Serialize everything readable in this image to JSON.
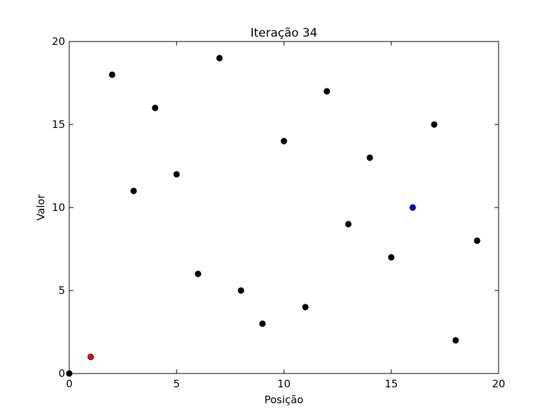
{
  "chart_data": {
    "type": "scatter",
    "title": "Iteração 34",
    "xlabel": "Posição",
    "ylabel": "Valor",
    "xlim": [
      0,
      20
    ],
    "ylim": [
      0,
      20
    ],
    "xticks": [
      0,
      5,
      10,
      15,
      20
    ],
    "yticks": [
      0,
      5,
      10,
      15,
      20
    ],
    "grid": false,
    "points": [
      {
        "x": 0,
        "y": 0,
        "color": "#000000"
      },
      {
        "x": 1,
        "y": 1,
        "color": "#ff0000"
      },
      {
        "x": 2,
        "y": 18,
        "color": "#000000"
      },
      {
        "x": 3,
        "y": 11,
        "color": "#000000"
      },
      {
        "x": 4,
        "y": 16,
        "color": "#000000"
      },
      {
        "x": 5,
        "y": 12,
        "color": "#000000"
      },
      {
        "x": 6,
        "y": 6,
        "color": "#000000"
      },
      {
        "x": 7,
        "y": 19,
        "color": "#000000"
      },
      {
        "x": 8,
        "y": 5,
        "color": "#000000"
      },
      {
        "x": 9,
        "y": 3,
        "color": "#000000"
      },
      {
        "x": 10,
        "y": 14,
        "color": "#000000"
      },
      {
        "x": 11,
        "y": 4,
        "color": "#000000"
      },
      {
        "x": 12,
        "y": 17,
        "color": "#000000"
      },
      {
        "x": 13,
        "y": 9,
        "color": "#000000"
      },
      {
        "x": 14,
        "y": 13,
        "color": "#000000"
      },
      {
        "x": 15,
        "y": 7,
        "color": "#000000"
      },
      {
        "x": 16,
        "y": 10,
        "color": "#0000ff"
      },
      {
        "x": 17,
        "y": 15,
        "color": "#000000"
      },
      {
        "x": 18,
        "y": 2,
        "color": "#000000"
      },
      {
        "x": 19,
        "y": 8,
        "color": "#000000"
      }
    ]
  }
}
